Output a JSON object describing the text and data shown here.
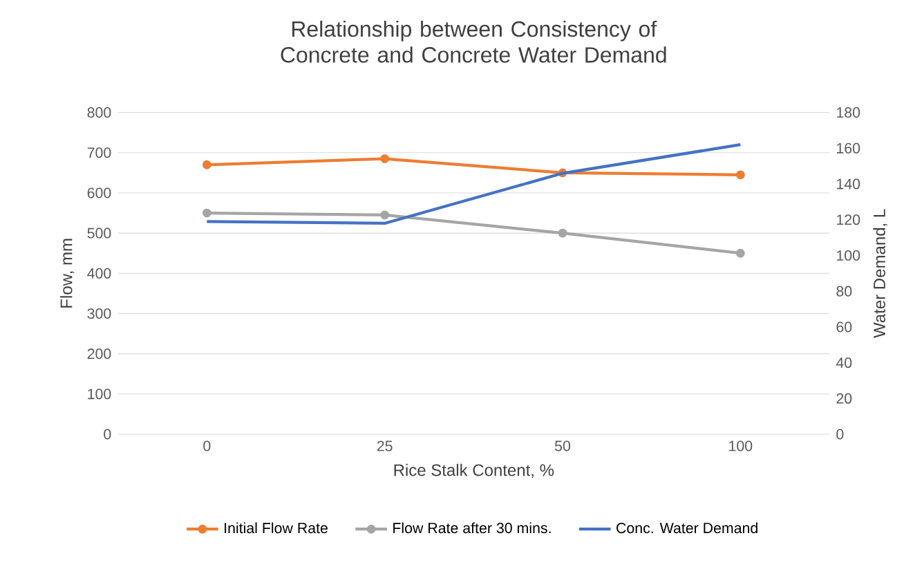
{
  "chart_data": {
    "type": "line",
    "title": "Relationship between Consistency of Concrete and Concrete Water Demand",
    "xlabel": "Rice Stalk Content, %",
    "ylabel": "Flow, mm",
    "y2label": "Water Demand, L",
    "categories": [
      "0",
      "25",
      "50",
      "100"
    ],
    "series": [
      {
        "name": "Initial Flow Rate",
        "color": "#ed7d31",
        "values": [
          670,
          685,
          650,
          645
        ],
        "marker": "circle"
      },
      {
        "name": "Flow Rate after 30 mins.",
        "color": "#a5a5a5",
        "values": [
          550,
          545,
          500,
          450
        ],
        "marker": "circle"
      },
      {
        "name": "Conc. Water Demand",
        "color": "#4472c4",
        "values": [
          119,
          118,
          146,
          162
        ],
        "axis": "y2",
        "marker": "none"
      }
    ],
    "ylim": [
      0,
      800
    ],
    "yticks": [
      0,
      100,
      200,
      300,
      400,
      500,
      600,
      700,
      800
    ],
    "y2lim": [
      0,
      180
    ],
    "y2ticks": [
      0,
      20,
      40,
      60,
      80,
      100,
      120,
      140,
      160,
      180
    ],
    "grid": "y",
    "legend": "bottom",
    "line_style": "solid"
  }
}
